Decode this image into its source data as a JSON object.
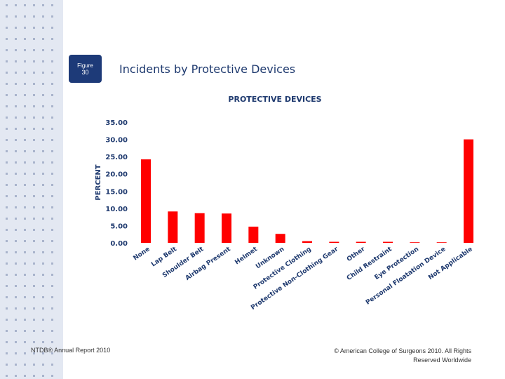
{
  "figure": {
    "label": "Figure",
    "number": "30"
  },
  "page_title": "Incidents by Protective Devices",
  "footer": {
    "left": "NTDB® Annual Report 2010",
    "right": "© American College of Surgeons 2010. All Rights Reserved Worldwide"
  },
  "colors": {
    "bar": "#ff0000",
    "text": "#1f3a6f",
    "badge": "#1d3a78",
    "sidebar": "#e3e8f2"
  },
  "chart_data": {
    "type": "bar",
    "title": "PROTECTIVE DEVICES",
    "xlabel": "",
    "ylabel": "PERCENT",
    "ylim": [
      0,
      35
    ],
    "yticks": [
      "0.00",
      "5.00",
      "10.00",
      "15.00",
      "20.00",
      "25.00",
      "30.00",
      "35.00"
    ],
    "grid": false,
    "categories": [
      "None",
      "Lap Belt",
      "Shoulder Belt",
      "Airbag Present",
      "Helmet",
      "Unknown",
      "Protective Clothing",
      "Protective Non-Clothing Gear",
      "Other",
      "Child Restraint",
      "Eye Protection",
      "Personal Floatation Device",
      "Not Applicable"
    ],
    "values": [
      24.2,
      9.1,
      8.6,
      8.5,
      4.7,
      2.6,
      0.5,
      0.3,
      0.3,
      0.3,
      0.1,
      0.05,
      30.0
    ]
  }
}
